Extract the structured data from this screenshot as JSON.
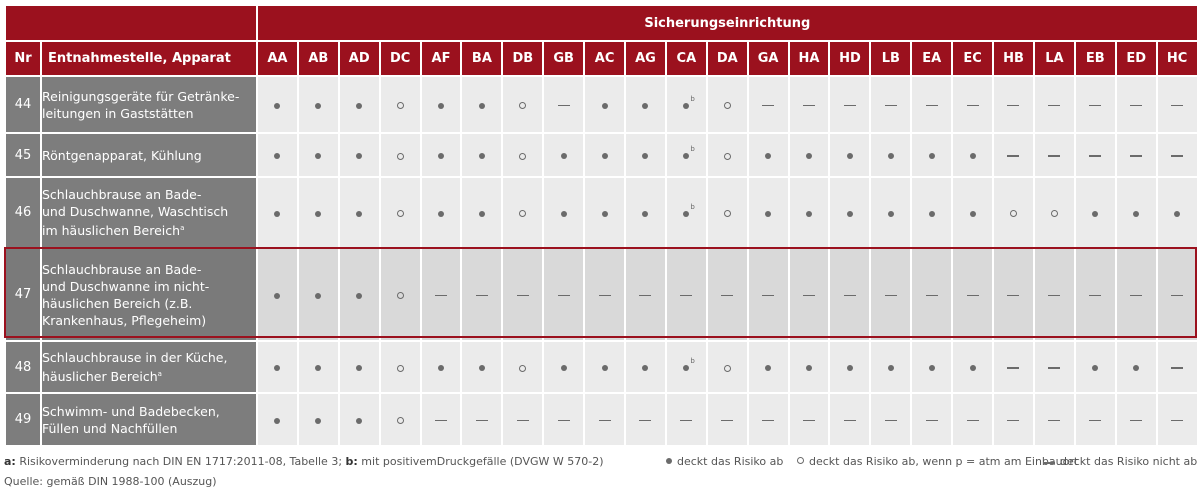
{
  "table": {
    "group_header": "Sicherungseinrichtung",
    "col_nr": "Nr",
    "col_name": "Entnahmestelle, Apparat",
    "codes": [
      "AA",
      "AB",
      "AD",
      "DC",
      "AF",
      "BA",
      "DB",
      "GB",
      "AC",
      "AG",
      "CA",
      "DA",
      "GA",
      "HA",
      "HD",
      "LB",
      "EA",
      "EC",
      "HB",
      "LA",
      "EB",
      "ED",
      "HC"
    ],
    "rows": [
      {
        "nr": "44",
        "name_lines": [
          "Reinigungsgeräte für Getränke-",
          "leitungen in Gaststätten"
        ],
        "name_sup": "",
        "cells": [
          "full",
          "full",
          "full",
          "ring",
          "full",
          "full",
          "ring",
          "dash",
          "full",
          "full",
          "full_b",
          "ring",
          "dash",
          "dash",
          "dash",
          "dash",
          "dash",
          "dash",
          "dash",
          "dash",
          "dash",
          "dash",
          "dash"
        ]
      },
      {
        "nr": "45",
        "name_lines": [
          "Röntgenapparat, Kühlung"
        ],
        "name_sup": "",
        "cells": [
          "full",
          "full",
          "full",
          "ring",
          "full",
          "full",
          "ring",
          "full",
          "full",
          "full",
          "full_b",
          "ring",
          "full",
          "full",
          "full",
          "full",
          "full",
          "full",
          "dash",
          "dash",
          "dash",
          "dash",
          "dash"
        ]
      },
      {
        "nr": "46",
        "name_lines": [
          "Schlauchbrause an Bade-",
          "und Duschwanne, Waschtisch",
          "im häuslichen Bereich"
        ],
        "name_sup": "a",
        "cells": [
          "full",
          "full",
          "full",
          "ring",
          "full",
          "full",
          "ring",
          "full",
          "full",
          "full",
          "full_b",
          "ring",
          "full",
          "full",
          "full",
          "full",
          "full",
          "full",
          "ring",
          "ring",
          "full",
          "full",
          "full"
        ]
      },
      {
        "nr": "47",
        "name_lines": [
          "Schlauchbrause an Bade-",
          "und Duschwanne im nicht-",
          "häuslichen Bereich (z.B.",
          "Krankenhaus, Pflegeheim)"
        ],
        "name_sup": "",
        "highlight": true,
        "cells": [
          "full",
          "full",
          "full",
          "ring",
          "dash",
          "dash",
          "dash",
          "dash",
          "dash",
          "dash",
          "dash",
          "dash",
          "dash",
          "dash",
          "dash",
          "dash",
          "dash",
          "dash",
          "dash",
          "dash",
          "dash",
          "dash",
          "dash"
        ]
      },
      {
        "nr": "48",
        "name_lines": [
          "Schlauchbrause in der Küche,",
          "häuslicher Bereich"
        ],
        "name_sup": "a",
        "cells": [
          "full",
          "full",
          "full",
          "ring",
          "full",
          "full",
          "ring",
          "full",
          "full",
          "full",
          "full_b",
          "ring",
          "full",
          "full",
          "full",
          "full",
          "full",
          "full",
          "dash",
          "dash",
          "full",
          "full",
          "dash"
        ]
      },
      {
        "nr": "49",
        "name_lines": [
          "Schwimm- und Badebecken,",
          "Füllen und Nachfüllen"
        ],
        "name_sup": "",
        "cells": [
          "full",
          "full",
          "full",
          "ring",
          "dash",
          "dash",
          "dash",
          "dash",
          "dash",
          "dash",
          "dash",
          "dash",
          "dash",
          "dash",
          "dash",
          "dash",
          "dash",
          "dash",
          "dash",
          "dash",
          "dash",
          "dash",
          "dash"
        ]
      }
    ],
    "sup_b": "b"
  },
  "footer": {
    "fn_a_key": "a:",
    "fn_a_text": " Risikoverminderung nach DIN EN 1717:2011-08, Tabelle 3; ",
    "fn_b_key": "b:",
    "fn_b_text": " mit positivemDruckgefälle (DVGW W 570-2)",
    "legend_full": "deckt das Risiko ab",
    "legend_ring": "deckt das Risiko ab, wenn p = atm am Einbauort",
    "legend_dash": "deckt das Risiko nicht ab",
    "source": "Quelle: gemäß DIN 1988-100 (Auszug)"
  }
}
